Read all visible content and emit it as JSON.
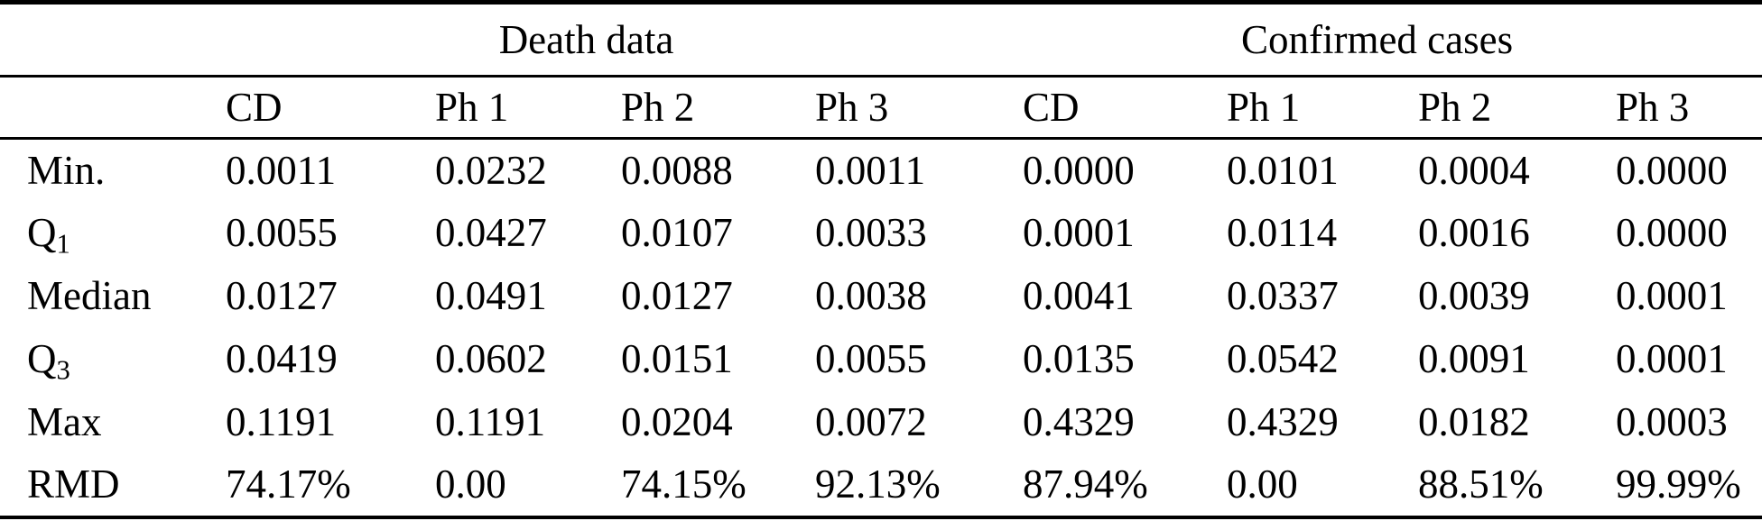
{
  "table": {
    "group_headers": {
      "death": "Death data",
      "confirmed": "Confirmed cases"
    },
    "column_headers": {
      "death_cd": "CD",
      "death_ph1": "Ph 1",
      "death_ph2": "Ph 2",
      "death_ph3": "Ph 3",
      "conf_cd": "CD",
      "conf_ph1": "Ph 1",
      "conf_ph2": "Ph 2",
      "conf_ph3": "Ph 3"
    },
    "rows": [
      {
        "label": "Min.",
        "label_sub": "",
        "cells": [
          "0.0011",
          "0.0232",
          "0.0088",
          "0.0011",
          "0.0000",
          "0.0101",
          "0.0004",
          "0.0000"
        ]
      },
      {
        "label": "Q",
        "label_sub": "1",
        "cells": [
          "0.0055",
          "0.0427",
          "0.0107",
          "0.0033",
          "0.0001",
          "0.0114",
          "0.0016",
          "0.0000"
        ]
      },
      {
        "label": "Median",
        "label_sub": "",
        "cells": [
          "0.0127",
          "0.0491",
          "0.0127",
          "0.0038",
          "0.0041",
          "0.0337",
          "0.0039",
          "0.0001"
        ]
      },
      {
        "label": "Q",
        "label_sub": "3",
        "cells": [
          "0.0419",
          "0.0602",
          "0.0151",
          "0.0055",
          "0.0135",
          "0.0542",
          "0.0091",
          "0.0001"
        ]
      },
      {
        "label": "Max",
        "label_sub": "",
        "cells": [
          "0.1191",
          "0.1191",
          "0.0204",
          "0.0072",
          "0.4329",
          "0.4329",
          "0.0182",
          "0.0003"
        ]
      },
      {
        "label": "RMD",
        "label_sub": "",
        "cells": [
          "74.17%",
          "0.00",
          "74.15%",
          "92.13%",
          "87.94%",
          "0.00",
          "88.51%",
          "99.99%"
        ]
      }
    ]
  },
  "colors": {
    "text": "#000000",
    "background": "#ffffff",
    "rule": "#000000"
  }
}
